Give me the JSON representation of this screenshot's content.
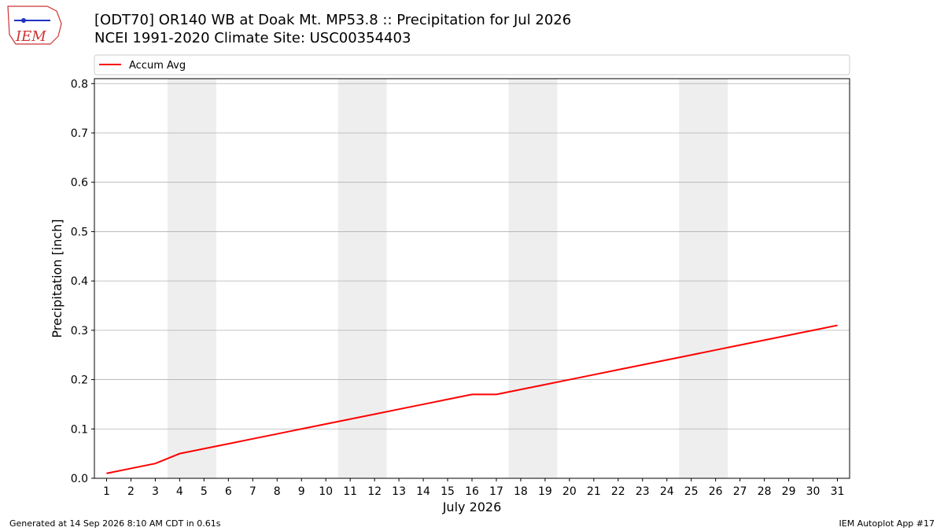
{
  "chart_data": {
    "type": "line",
    "title": "[ODT70] OR140 WB at Doak Mt. MP53.8  :: Precipitation for Jul 2026",
    "subtitle": "NCEI 1991-2020 Climate Site: USC00354403",
    "logo_text": "IEM",
    "xlabel": "July 2026",
    "ylabel": "Precipitation [inch]",
    "x": [
      1,
      2,
      3,
      4,
      5,
      6,
      7,
      8,
      9,
      10,
      11,
      12,
      13,
      14,
      15,
      16,
      17,
      18,
      19,
      20,
      21,
      22,
      23,
      24,
      25,
      26,
      27,
      28,
      29,
      30,
      31
    ],
    "series": [
      {
        "name": "Accum Avg",
        "color": "#ff0000",
        "values": [
          0.01,
          0.02,
          0.03,
          0.05,
          0.06,
          0.07,
          0.08,
          0.09,
          0.1,
          0.11,
          0.12,
          0.13,
          0.14,
          0.15,
          0.16,
          0.17,
          0.17,
          0.18,
          0.19,
          0.2,
          0.21,
          0.22,
          0.23,
          0.24,
          0.25,
          0.26,
          0.27,
          0.28,
          0.29,
          0.3,
          0.31
        ]
      }
    ],
    "xlim": [
      0.5,
      31.5
    ],
    "xticks": [
      1,
      2,
      3,
      4,
      5,
      6,
      7,
      8,
      9,
      10,
      11,
      12,
      13,
      14,
      15,
      16,
      17,
      18,
      19,
      20,
      21,
      22,
      23,
      24,
      25,
      26,
      27,
      28,
      29,
      30,
      31
    ],
    "ylim": [
      0,
      0.81
    ],
    "yticks": [
      {
        "value": 0,
        "label": "0.0"
      },
      0.1,
      0.2,
      0.3,
      0.4,
      0.5,
      0.6,
      0.7,
      0.8
    ],
    "grid": true,
    "shaded_spans": [
      [
        3.5,
        5.5
      ],
      [
        10.5,
        12.5
      ],
      [
        17.5,
        19.5
      ],
      [
        24.5,
        26.5
      ]
    ],
    "footer_left": "Generated at 14 Sep 2026 8:10 AM CDT in 0.61s",
    "footer_right": "IEM Autoplot App #17"
  }
}
